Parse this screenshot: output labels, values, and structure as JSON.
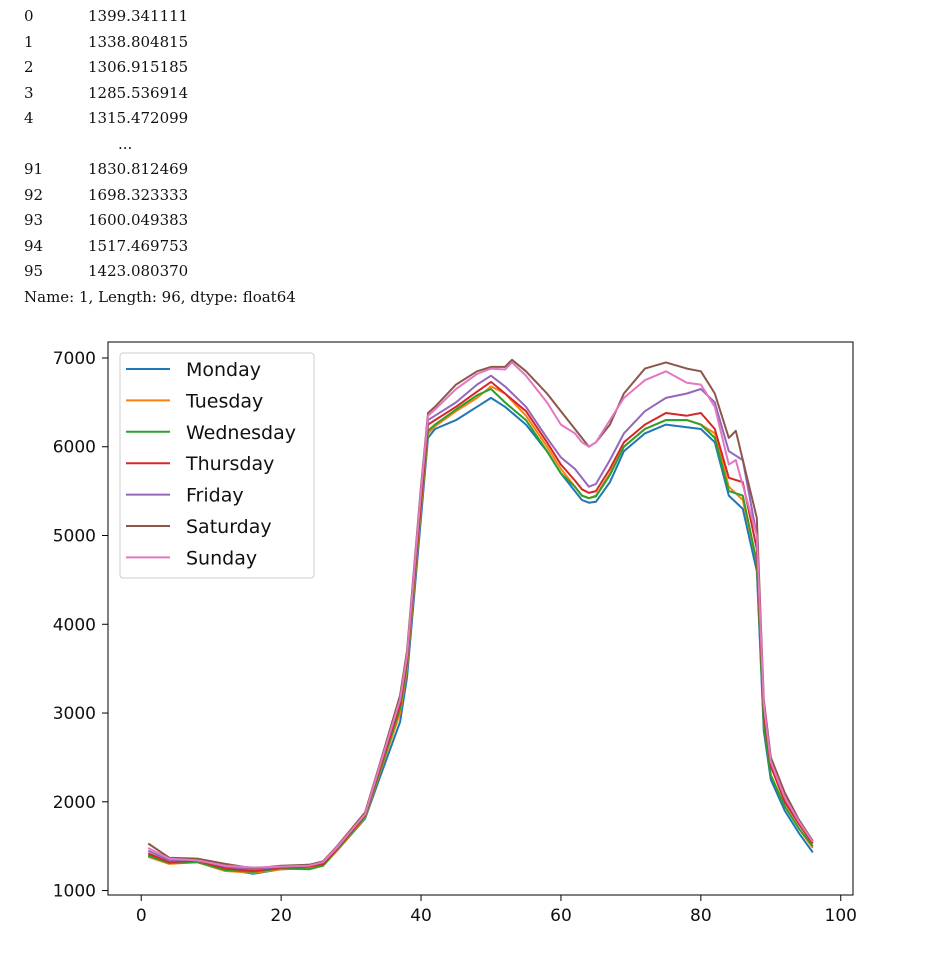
{
  "console": {
    "rows": [
      {
        "index": "0",
        "value": "1399.341111"
      },
      {
        "index": "1",
        "value": "1338.804815"
      },
      {
        "index": "2",
        "value": "1306.915185"
      },
      {
        "index": "3",
        "value": "1285.536914"
      },
      {
        "index": "4",
        "value": "1315.472099"
      }
    ],
    "ellipsis": "...",
    "rows_tail": [
      {
        "index": "91",
        "value": "1830.812469"
      },
      {
        "index": "92",
        "value": "1698.323333"
      },
      {
        "index": "93",
        "value": "1600.049383"
      },
      {
        "index": "94",
        "value": "1517.469753"
      },
      {
        "index": "95",
        "value": "1423.080370"
      }
    ],
    "summary": "Name: 1, Length: 96, dtype: float64"
  },
  "chart_data": {
    "type": "line",
    "title": "",
    "xlabel": "",
    "ylabel": "",
    "xlim": [
      -4.75,
      101.75
    ],
    "ylim": [
      950,
      7180
    ],
    "xticks": [
      0,
      20,
      40,
      60,
      80,
      100
    ],
    "yticks": [
      1000,
      2000,
      3000,
      4000,
      5000,
      6000,
      7000
    ],
    "grid": false,
    "legend": "top-left",
    "series": [
      {
        "name": "Monday",
        "color": "#1f77b4",
        "points": [
          [
            1,
            1400
          ],
          [
            4,
            1310
          ],
          [
            8,
            1330
          ],
          [
            12,
            1240
          ],
          [
            16,
            1190
          ],
          [
            20,
            1240
          ],
          [
            24,
            1250
          ],
          [
            26,
            1290
          ],
          [
            28,
            1450
          ],
          [
            32,
            1810
          ],
          [
            34,
            2250
          ],
          [
            37,
            2900
          ],
          [
            38,
            3400
          ],
          [
            40,
            5200
          ],
          [
            41,
            6100
          ],
          [
            42,
            6200
          ],
          [
            45,
            6300
          ],
          [
            48,
            6450
          ],
          [
            50,
            6550
          ],
          [
            52,
            6450
          ],
          [
            55,
            6250
          ],
          [
            58,
            5950
          ],
          [
            60,
            5700
          ],
          [
            62,
            5500
          ],
          [
            63,
            5400
          ],
          [
            64,
            5370
          ],
          [
            65,
            5380
          ],
          [
            67,
            5600
          ],
          [
            69,
            5950
          ],
          [
            72,
            6150
          ],
          [
            75,
            6250
          ],
          [
            78,
            6220
          ],
          [
            80,
            6200
          ],
          [
            82,
            6050
          ],
          [
            84,
            5450
          ],
          [
            86,
            5300
          ],
          [
            88,
            4600
          ],
          [
            89,
            2800
          ],
          [
            90,
            2250
          ],
          [
            92,
            1900
          ],
          [
            94,
            1650
          ],
          [
            96,
            1430
          ]
        ]
      },
      {
        "name": "Tuesday",
        "color": "#ff7f0e",
        "points": [
          [
            1,
            1380
          ],
          [
            4,
            1300
          ],
          [
            8,
            1320
          ],
          [
            12,
            1220
          ],
          [
            16,
            1200
          ],
          [
            20,
            1240
          ],
          [
            24,
            1250
          ],
          [
            26,
            1280
          ],
          [
            28,
            1450
          ],
          [
            32,
            1820
          ],
          [
            34,
            2300
          ],
          [
            37,
            3000
          ],
          [
            38,
            3500
          ],
          [
            40,
            5300
          ],
          [
            41,
            6150
          ],
          [
            42,
            6230
          ],
          [
            45,
            6400
          ],
          [
            48,
            6550
          ],
          [
            50,
            6680
          ],
          [
            52,
            6600
          ],
          [
            55,
            6350
          ],
          [
            58,
            6000
          ],
          [
            60,
            5750
          ],
          [
            62,
            5550
          ],
          [
            63,
            5450
          ],
          [
            64,
            5420
          ],
          [
            65,
            5450
          ],
          [
            67,
            5700
          ],
          [
            69,
            6000
          ],
          [
            72,
            6200
          ],
          [
            75,
            6300
          ],
          [
            78,
            6300
          ],
          [
            80,
            6250
          ],
          [
            82,
            6150
          ],
          [
            84,
            5550
          ],
          [
            86,
            5400
          ],
          [
            88,
            4700
          ],
          [
            89,
            2900
          ],
          [
            90,
            2300
          ],
          [
            92,
            1950
          ],
          [
            94,
            1700
          ],
          [
            96,
            1480
          ]
        ]
      },
      {
        "name": "Wednesday",
        "color": "#2ca02c",
        "points": [
          [
            1,
            1390
          ],
          [
            4,
            1310
          ],
          [
            8,
            1320
          ],
          [
            12,
            1230
          ],
          [
            16,
            1210
          ],
          [
            20,
            1250
          ],
          [
            24,
            1240
          ],
          [
            26,
            1280
          ],
          [
            28,
            1460
          ],
          [
            32,
            1830
          ],
          [
            34,
            2320
          ],
          [
            37,
            3050
          ],
          [
            38,
            3550
          ],
          [
            40,
            5350
          ],
          [
            41,
            6180
          ],
          [
            42,
            6250
          ],
          [
            45,
            6420
          ],
          [
            48,
            6580
          ],
          [
            50,
            6650
          ],
          [
            52,
            6500
          ],
          [
            55,
            6300
          ],
          [
            58,
            5950
          ],
          [
            60,
            5700
          ],
          [
            62,
            5550
          ],
          [
            63,
            5450
          ],
          [
            64,
            5420
          ],
          [
            65,
            5440
          ],
          [
            67,
            5680
          ],
          [
            69,
            6000
          ],
          [
            72,
            6200
          ],
          [
            75,
            6300
          ],
          [
            78,
            6300
          ],
          [
            80,
            6250
          ],
          [
            82,
            6100
          ],
          [
            84,
            5500
          ],
          [
            86,
            5450
          ],
          [
            88,
            4700
          ],
          [
            89,
            2850
          ],
          [
            90,
            2300
          ],
          [
            92,
            1950
          ],
          [
            94,
            1700
          ],
          [
            96,
            1500
          ]
        ]
      },
      {
        "name": "Thursday",
        "color": "#d62728",
        "points": [
          [
            1,
            1420
          ],
          [
            4,
            1320
          ],
          [
            8,
            1340
          ],
          [
            12,
            1250
          ],
          [
            16,
            1220
          ],
          [
            20,
            1260
          ],
          [
            24,
            1270
          ],
          [
            26,
            1300
          ],
          [
            28,
            1470
          ],
          [
            32,
            1850
          ],
          [
            34,
            2350
          ],
          [
            37,
            3100
          ],
          [
            38,
            3600
          ],
          [
            40,
            5400
          ],
          [
            41,
            6250
          ],
          [
            42,
            6300
          ],
          [
            45,
            6450
          ],
          [
            48,
            6620
          ],
          [
            50,
            6730
          ],
          [
            52,
            6600
          ],
          [
            55,
            6400
          ],
          [
            58,
            6050
          ],
          [
            60,
            5800
          ],
          [
            62,
            5620
          ],
          [
            63,
            5520
          ],
          [
            64,
            5480
          ],
          [
            65,
            5500
          ],
          [
            67,
            5750
          ],
          [
            69,
            6050
          ],
          [
            72,
            6250
          ],
          [
            75,
            6380
          ],
          [
            78,
            6350
          ],
          [
            80,
            6380
          ],
          [
            82,
            6200
          ],
          [
            84,
            5650
          ],
          [
            86,
            5600
          ],
          [
            88,
            4850
          ],
          [
            89,
            3000
          ],
          [
            90,
            2400
          ],
          [
            92,
            2000
          ],
          [
            94,
            1750
          ],
          [
            96,
            1530
          ]
        ]
      },
      {
        "name": "Friday",
        "color": "#9467bd",
        "points": [
          [
            1,
            1450
          ],
          [
            4,
            1340
          ],
          [
            8,
            1350
          ],
          [
            12,
            1270
          ],
          [
            16,
            1240
          ],
          [
            20,
            1270
          ],
          [
            24,
            1290
          ],
          [
            26,
            1320
          ],
          [
            28,
            1480
          ],
          [
            32,
            1870
          ],
          [
            34,
            2380
          ],
          [
            37,
            3150
          ],
          [
            38,
            3650
          ],
          [
            40,
            5500
          ],
          [
            41,
            6300
          ],
          [
            42,
            6350
          ],
          [
            45,
            6500
          ],
          [
            48,
            6700
          ],
          [
            50,
            6800
          ],
          [
            52,
            6680
          ],
          [
            55,
            6450
          ],
          [
            58,
            6100
          ],
          [
            60,
            5880
          ],
          [
            62,
            5750
          ],
          [
            63,
            5650
          ],
          [
            64,
            5550
          ],
          [
            65,
            5580
          ],
          [
            67,
            5850
          ],
          [
            69,
            6150
          ],
          [
            72,
            6400
          ],
          [
            75,
            6550
          ],
          [
            78,
            6600
          ],
          [
            80,
            6650
          ],
          [
            82,
            6500
          ],
          [
            84,
            5950
          ],
          [
            86,
            5850
          ],
          [
            88,
            5000
          ],
          [
            89,
            3100
          ],
          [
            90,
            2450
          ],
          [
            92,
            2050
          ],
          [
            94,
            1780
          ],
          [
            96,
            1550
          ]
        ]
      },
      {
        "name": "Saturday",
        "color": "#8c564b",
        "points": [
          [
            1,
            1530
          ],
          [
            4,
            1370
          ],
          [
            8,
            1360
          ],
          [
            12,
            1300
          ],
          [
            16,
            1250
          ],
          [
            20,
            1280
          ],
          [
            24,
            1290
          ],
          [
            26,
            1330
          ],
          [
            28,
            1500
          ],
          [
            32,
            1880
          ],
          [
            34,
            2400
          ],
          [
            37,
            3200
          ],
          [
            38,
            3700
          ],
          [
            40,
            5550
          ],
          [
            41,
            6380
          ],
          [
            42,
            6450
          ],
          [
            45,
            6700
          ],
          [
            48,
            6850
          ],
          [
            50,
            6900
          ],
          [
            52,
            6900
          ],
          [
            53,
            6980
          ],
          [
            55,
            6850
          ],
          [
            58,
            6600
          ],
          [
            60,
            6400
          ],
          [
            62,
            6200
          ],
          [
            63,
            6100
          ],
          [
            64,
            6000
          ],
          [
            65,
            6050
          ],
          [
            67,
            6250
          ],
          [
            69,
            6600
          ],
          [
            72,
            6880
          ],
          [
            75,
            6950
          ],
          [
            78,
            6880
          ],
          [
            80,
            6850
          ],
          [
            82,
            6600
          ],
          [
            84,
            6100
          ],
          [
            85,
            6180
          ],
          [
            88,
            5200
          ],
          [
            89,
            3150
          ],
          [
            90,
            2500
          ],
          [
            92,
            2100
          ],
          [
            94,
            1800
          ],
          [
            96,
            1560
          ]
        ]
      },
      {
        "name": "Sunday",
        "color": "#e377c2",
        "points": [
          [
            1,
            1480
          ],
          [
            4,
            1360
          ],
          [
            8,
            1340
          ],
          [
            12,
            1280
          ],
          [
            16,
            1260
          ],
          [
            20,
            1270
          ],
          [
            24,
            1280
          ],
          [
            26,
            1320
          ],
          [
            28,
            1490
          ],
          [
            32,
            1860
          ],
          [
            34,
            2380
          ],
          [
            37,
            3150
          ],
          [
            38,
            3650
          ],
          [
            40,
            5500
          ],
          [
            41,
            6350
          ],
          [
            42,
            6420
          ],
          [
            45,
            6650
          ],
          [
            48,
            6820
          ],
          [
            50,
            6880
          ],
          [
            52,
            6870
          ],
          [
            53,
            6950
          ],
          [
            55,
            6800
          ],
          [
            58,
            6500
          ],
          [
            60,
            6250
          ],
          [
            62,
            6150
          ],
          [
            63,
            6050
          ],
          [
            64,
            6000
          ],
          [
            65,
            6050
          ],
          [
            67,
            6300
          ],
          [
            69,
            6550
          ],
          [
            72,
            6750
          ],
          [
            75,
            6850
          ],
          [
            78,
            6720
          ],
          [
            80,
            6700
          ],
          [
            82,
            6450
          ],
          [
            84,
            5800
          ],
          [
            85,
            5850
          ],
          [
            88,
            5000
          ],
          [
            89,
            3100
          ],
          [
            90,
            2450
          ],
          [
            92,
            2050
          ],
          [
            94,
            1780
          ],
          [
            96,
            1550
          ]
        ]
      }
    ]
  }
}
